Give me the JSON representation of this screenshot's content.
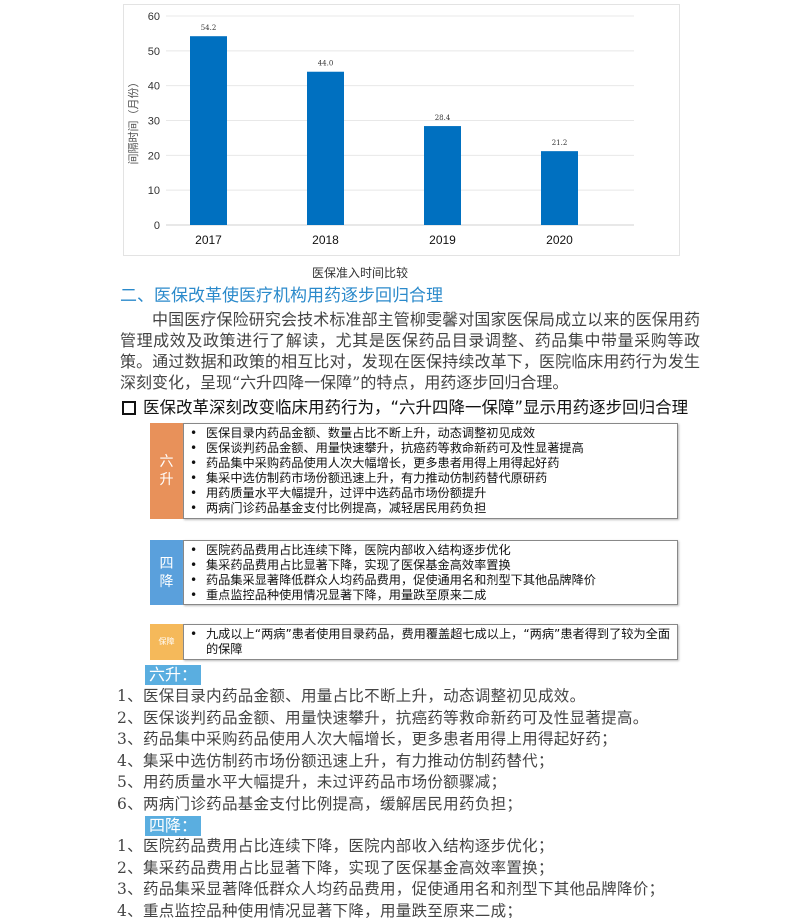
{
  "chart_data": {
    "type": "bar",
    "categories": [
      "2017",
      "2018",
      "2019",
      "2020"
    ],
    "values": [
      54.2,
      44.0,
      28.4,
      21.2
    ],
    "value_labels": [
      "54.2",
      "44.0",
      "28.4",
      "21.2"
    ],
    "ylabel": "间隔时间（月份）",
    "ylim": [
      0,
      60
    ],
    "yticks": [
      0,
      10,
      20,
      30,
      40,
      50,
      60
    ],
    "grid": true,
    "bar_color": "#0070c0"
  },
  "caption": "医保准入时间比较",
  "heading": "二、医保改革使医疗机构用药逐步回归合理",
  "paragraph": "中国医疗保险研究会技术标准部主管柳雯馨对国家医保局成立以来的医保用药管理成效及政策进行了解读，尤其是医保药品目录调整、药品集中带量采购等政策。通过数据和政策的相互比对，发现在医保持续改革下，医院临床用药行为发生深刻变化，呈现“六升四降一保障”的特点，用药逐步回归合理。",
  "figure": {
    "title": "医保改革深刻改变临床用药行为，“六升四降一保障”显示用药逐步回归合理",
    "groups": [
      {
        "tag": "六升",
        "color": "#e8915a",
        "items": [
          "医保目录内药品金额、数量占比不断上升，动态调整初见成效",
          "医保谈判药品金额、用量快速攀升，抗癌药等救命新药可及性显著提高",
          "药品集中采购药品使用人次大幅增长，更多患者用得上用得起好药",
          "集采中选仿制药市场份额迅速上升，有力推动仿制药替代原研药",
          "用药质量水平大幅提升，过评中选药品市场份额提升",
          "两病门诊药品基金支付比例提高，减轻居民用药负担"
        ]
      },
      {
        "tag": "四降",
        "color": "#5aa0dc",
        "items": [
          "医院药品费用占比连续下降，医院内部收入结构逐步优化",
          "集采药品费用占比显著下降，实现了医保基金高效率置换",
          "药品集采显著降低群众人均药品费用，促使通用名和剂型下其他品牌降价",
          "重点监控品种使用情况显著下降，用量跌至原来二成"
        ]
      },
      {
        "tag": "保障",
        "color": "#f5b95a",
        "items": [
          "九成以上“两病”患者使用目录药品，费用覆盖超七成以上，“两病”患者得到了较为全面的保障"
        ]
      }
    ]
  },
  "six_up": {
    "label": "六升：",
    "items": [
      "1、医保目录内药品金额、用量占比不断上升，动态调整初见成效。",
      "2、医保谈判药品金额、用量快速攀升，抗癌药等救命新药可及性显著提高。",
      "3、药品集中采购药品使用人次大幅增长，更多患者用得上用得起好药；",
      "4、集采中选仿制药市场份额迅速上升，有力推动仿制药替代；",
      "5、用药质量水平大幅提升，未过评药品市场份额骤减；",
      "6、两病门诊药品基金支付比例提高，缓解居民用药负担；"
    ]
  },
  "four_down": {
    "label": "四降：",
    "items": [
      "1、医院药品费用占比连续下降，医院内部收入结构逐步优化；",
      "2、集采药品费用占比显著下降，实现了医保基金高效率置换；",
      "3、药品集采显著降低群众人均药品费用，促使通用名和剂型下其他品牌降价；",
      "4、重点监控品种使用情况显著下降，用量跌至原来二成；"
    ]
  }
}
